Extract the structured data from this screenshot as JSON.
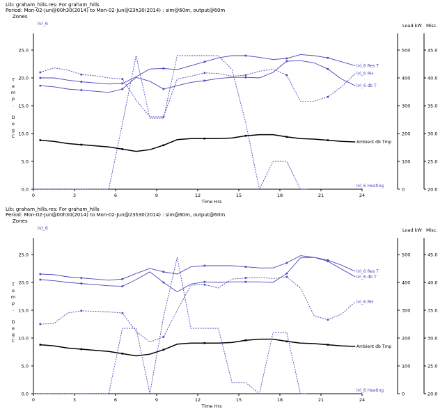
{
  "chart_data": [
    {
      "type": "line",
      "header_line1": "Lib: graham_hills.res: For graham_hills",
      "header_line2": "Period: Mon-02-Jun@00h30(2014) to Mon-02-Jun@23h30(2014) : sim@60m, output@60m",
      "zones_label": "Zones",
      "zone_name": "lvl_6",
      "xlabel": "Time Hrs",
      "ylabel_left": "Temp. DegC",
      "ylabel_right_1": "Load kW",
      "ylabel_right_2": "Misc.",
      "x_ticks": [
        "0",
        "3",
        "6",
        "9",
        "12",
        "15",
        "18",
        "21",
        "24"
      ],
      "y_ticks": [
        "0.0",
        "5.0",
        "10.0",
        "15.0",
        "20.0",
        "25.0"
      ],
      "y2_ticks": [
        "0",
        "100",
        "200",
        "300",
        "400",
        "500"
      ],
      "y3_ticks": [
        "20.0",
        "25.0",
        "30.0",
        "35.0",
        "40.0",
        "45.0"
      ],
      "xlim": [
        0,
        24
      ],
      "ylim": [
        0,
        27.5
      ],
      "y2lim": [
        0,
        550
      ],
      "y3lim": [
        20,
        47.5
      ],
      "series": [
        {
          "name": "lvl_6 Res T",
          "axis": "temp",
          "style": "solid",
          "color": "#4545b8",
          "x": [
            0.5,
            1.5,
            2.5,
            3.5,
            4.5,
            5.5,
            6.5,
            7.5,
            8.5,
            9.5,
            10.5,
            11.5,
            12.5,
            13.5,
            14.5,
            15.5,
            16.5,
            17.5,
            18.5,
            19.5,
            20.5,
            21.5,
            22.5,
            23.5
          ],
          "y": [
            20.0,
            20.0,
            19.6,
            19.3,
            19.1,
            18.9,
            19.0,
            20.2,
            21.6,
            21.7,
            21.5,
            22.2,
            22.9,
            23.6,
            24.0,
            24.0,
            23.7,
            23.3,
            23.5,
            24.2,
            24.0,
            23.6,
            22.9,
            22.2
          ]
        },
        {
          "name": "lvl_6 db T",
          "axis": "temp",
          "style": "solid",
          "color": "#4545b8",
          "x": [
            0.5,
            1.5,
            2.5,
            3.5,
            4.5,
            5.5,
            6.5,
            7.5,
            8.5,
            9.5,
            10.5,
            11.5,
            12.5,
            13.5,
            14.5,
            15.5,
            16.5,
            17.5,
            18.5,
            19.5,
            20.5,
            21.5,
            22.5,
            23.5
          ],
          "y": [
            18.6,
            18.4,
            18.0,
            17.8,
            17.6,
            17.4,
            18.0,
            20.1,
            19.4,
            18.0,
            18.6,
            19.2,
            19.5,
            19.9,
            20.1,
            20.1,
            20.0,
            21.0,
            23.0,
            23.1,
            22.7,
            21.6,
            19.8,
            18.6
          ]
        },
        {
          "name": "Ambient db Tmp",
          "axis": "temp",
          "style": "solid",
          "color": "#000000",
          "width": 1.5,
          "x": [
            0.5,
            1.5,
            2.5,
            3.5,
            4.5,
            5.5,
            6.5,
            7.5,
            8.5,
            9.5,
            10.5,
            11.5,
            12.5,
            13.5,
            14.5,
            15.5,
            16.5,
            17.5,
            18.5,
            19.5,
            20.5,
            21.5,
            22.5,
            23.5
          ],
          "y": [
            8.8,
            8.6,
            8.2,
            8.0,
            7.8,
            7.6,
            7.2,
            6.8,
            7.1,
            7.9,
            8.9,
            9.1,
            9.1,
            9.1,
            9.2,
            9.6,
            9.8,
            9.8,
            9.4,
            9.1,
            9.0,
            8.8,
            8.6,
            8.5
          ]
        },
        {
          "name": "lvl_6 RH",
          "axis": "misc",
          "style": "dotted",
          "color": "#4545b8",
          "x": [
            0.5,
            1.5,
            2.5,
            3.5,
            4.5,
            5.5,
            6.5,
            7.5,
            8.5,
            9.5,
            10.5,
            11.5,
            12.5,
            13.5,
            14.5,
            15.5,
            16.5,
            17.5,
            18.5,
            19.5,
            20.5,
            21.5,
            22.5,
            23.5
          ],
          "y": [
            41.0,
            41.8,
            41.4,
            40.6,
            40.4,
            40.0,
            39.8,
            36.0,
            33.0,
            33.0,
            39.8,
            40.3,
            40.9,
            40.8,
            40.3,
            40.5,
            41.2,
            41.6,
            40.5,
            35.8,
            35.8,
            36.6,
            38.4,
            40.8
          ]
        },
        {
          "name": "lvl_6 Heating",
          "axis": "load",
          "style": "dotted",
          "color": "#4545b8",
          "x": [
            0,
            4.5,
            5.5,
            6.5,
            7.5,
            8.5,
            9.5,
            10.5,
            11.5,
            12.5,
            13.5,
            14.5,
            15.5,
            16.5,
            17.5,
            18.5,
            19.5,
            20
          ],
          "y": [
            0,
            0,
            0,
            235,
            480,
            255,
            255,
            480,
            480,
            480,
            480,
            430,
            240,
            0,
            100,
            100,
            0,
            0
          ]
        }
      ]
    },
    {
      "type": "line",
      "header_line1": "Lib: graham_hills.res: For graham_hills",
      "header_line2": "Period: Mon-02-Jun@00h30(2014) to Mon-02-Jun@23h30(2014) : sim@60m, output@60m",
      "zones_label": "Zones",
      "zone_name": "lvl_6",
      "xlabel": "Time Hrs",
      "ylabel_left": "Temp. DegC",
      "ylabel_right_1": "Load kW",
      "ylabel_right_2": "Misc.",
      "x_ticks": [
        "0",
        "3",
        "6",
        "9",
        "12",
        "15",
        "18",
        "21",
        "24"
      ],
      "y_ticks": [
        "0.0",
        "5.0",
        "10.0",
        "15.0",
        "20.0",
        "25.0"
      ],
      "y2_ticks": [
        "0",
        "100",
        "200",
        "300",
        "400",
        "500"
      ],
      "y3_ticks": [
        "20.0",
        "25.0",
        "30.0",
        "35.0",
        "40.0",
        "45.0"
      ],
      "xlim": [
        0,
        24
      ],
      "ylim": [
        0,
        27.5
      ],
      "y2lim": [
        0,
        550
      ],
      "y3lim": [
        20,
        47.5
      ],
      "series": [
        {
          "name": "lvl_6 Res T",
          "axis": "temp",
          "style": "solid",
          "color": "#4545b8",
          "x": [
            0.5,
            1.5,
            2.5,
            3.5,
            4.5,
            5.5,
            6.5,
            7.5,
            8.5,
            9.5,
            10.5,
            11.5,
            12.5,
            13.5,
            14.5,
            15.5,
            16.5,
            17.5,
            18.5,
            19.5,
            20.5,
            21.5,
            22.5,
            23.5
          ],
          "y": [
            21.5,
            21.4,
            21.0,
            20.8,
            20.6,
            20.4,
            20.6,
            21.6,
            22.5,
            21.9,
            21.5,
            22.8,
            23.0,
            23.0,
            23.0,
            22.8,
            22.6,
            22.6,
            23.5,
            24.8,
            24.5,
            24.0,
            23.1,
            22.0
          ]
        },
        {
          "name": "lvl_6 db T",
          "axis": "temp",
          "style": "solid",
          "color": "#4545b8",
          "x": [
            0.5,
            1.5,
            2.5,
            3.5,
            4.5,
            5.5,
            6.5,
            7.5,
            8.5,
            9.5,
            10.5,
            11.5,
            12.5,
            13.5,
            14.5,
            15.5,
            16.5,
            17.5,
            18.5,
            19.5,
            20.5,
            21.5,
            22.5,
            23.5
          ],
          "y": [
            20.5,
            20.3,
            20.0,
            19.8,
            19.6,
            19.4,
            19.3,
            20.5,
            21.9,
            20.0,
            18.3,
            19.7,
            20.1,
            20.0,
            20.1,
            20.1,
            20.1,
            20.0,
            21.6,
            24.4,
            24.5,
            23.8,
            22.4,
            21.0
          ]
        },
        {
          "name": "Ambient db Tmp",
          "axis": "temp",
          "style": "solid",
          "color": "#000000",
          "width": 1.5,
          "x": [
            0.5,
            1.5,
            2.5,
            3.5,
            4.5,
            5.5,
            6.5,
            7.5,
            8.5,
            9.5,
            10.5,
            11.5,
            12.5,
            13.5,
            14.5,
            15.5,
            16.5,
            17.5,
            18.5,
            19.5,
            20.5,
            21.5,
            22.5,
            23.5
          ],
          "y": [
            8.8,
            8.6,
            8.2,
            8.0,
            7.8,
            7.6,
            7.2,
            6.8,
            7.1,
            7.9,
            8.9,
            9.1,
            9.1,
            9.1,
            9.2,
            9.6,
            9.8,
            9.8,
            9.4,
            9.1,
            9.0,
            8.8,
            8.6,
            8.5
          ]
        },
        {
          "name": "lvl_6 RH",
          "axis": "misc",
          "style": "dotted",
          "color": "#4545b8",
          "x": [
            0.5,
            1.5,
            2.5,
            3.5,
            4.5,
            5.5,
            6.5,
            7.5,
            8.5,
            9.5,
            10.5,
            11.5,
            12.5,
            13.5,
            14.5,
            15.5,
            16.5,
            17.5,
            18.5,
            19.5,
            20.5,
            21.5,
            22.5,
            23.5
          ],
          "y": [
            32.5,
            32.6,
            34.5,
            34.9,
            34.8,
            34.7,
            34.5,
            31.2,
            29.3,
            30.2,
            35.0,
            39.5,
            39.6,
            39.0,
            40.6,
            40.8,
            40.9,
            40.7,
            41.0,
            39.0,
            34.0,
            33.3,
            34.3,
            36.5
          ]
        },
        {
          "name": "lvl_6 Heating",
          "axis": "load",
          "style": "dotted",
          "color": "#4545b8",
          "x": [
            0,
            4.5,
            5.5,
            6.5,
            7.5,
            8.5,
            9.5,
            10.5,
            11.5,
            12.5,
            13.5,
            14.5,
            15.5,
            16.5,
            17.5,
            18.5,
            19.5,
            20
          ],
          "y": [
            0,
            0,
            0,
            235,
            235,
            0,
            275,
            490,
            235,
            235,
            235,
            40,
            40,
            0,
            220,
            220,
            0,
            0
          ]
        }
      ]
    }
  ]
}
